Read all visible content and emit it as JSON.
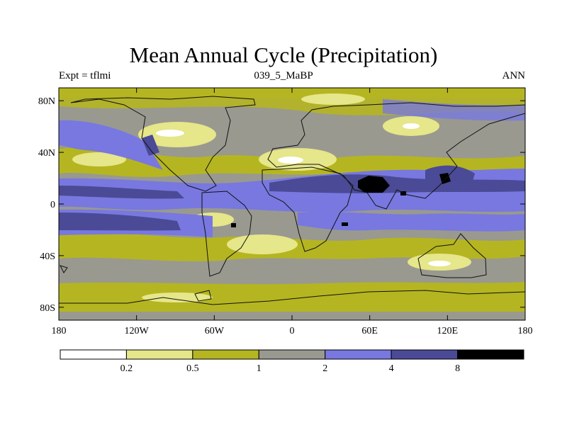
{
  "title": "Mean Annual Cycle (Precipitation)",
  "subtitle_left": "Expt = tflmi",
  "subtitle_center": "039_5_MaBP",
  "subtitle_right": "ANN",
  "map": {
    "lon_range": [
      -180,
      180
    ],
    "lat_range": [
      -90,
      90
    ],
    "x_ticks": [
      {
        "lon": -180,
        "label": "180"
      },
      {
        "lon": -120,
        "label": "120W"
      },
      {
        "lon": -60,
        "label": "60W"
      },
      {
        "lon": 0,
        "label": "0"
      },
      {
        "lon": 60,
        "label": "60E"
      },
      {
        "lon": 120,
        "label": "120E"
      },
      {
        "lon": 180,
        "label": "180"
      }
    ],
    "y_ticks": [
      {
        "lat": 80,
        "label": "80N"
      },
      {
        "lat": 40,
        "label": "40N"
      },
      {
        "lat": 0,
        "label": "0"
      },
      {
        "lat": -40,
        "label": "40S"
      },
      {
        "lat": -80,
        "label": "80S"
      }
    ]
  },
  "colorbar": {
    "colors": [
      "#ffffff",
      "#e6e68a",
      "#b5b521",
      "#999990",
      "#7878e0",
      "#4a4a96",
      "#000000"
    ],
    "labels": [
      "0.2",
      "0.5",
      "1",
      "2",
      "4",
      "8"
    ]
  }
}
